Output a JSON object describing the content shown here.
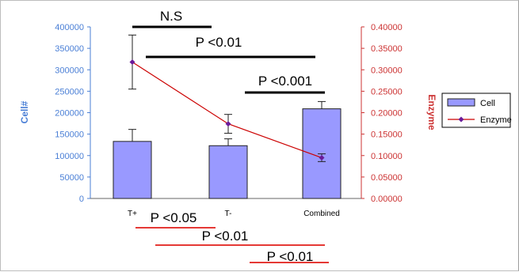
{
  "chart_data": {
    "type": "bar",
    "categories": [
      "T+",
      "T-",
      "Combined"
    ],
    "ylabel": "Cell#",
    "y2label": "Enzyme",
    "ylim": [
      0,
      400000
    ],
    "y2lim": [
      0,
      0.4
    ],
    "yticks": [
      "0",
      "50000",
      "100000",
      "150000",
      "200000",
      "250000",
      "300000",
      "350000",
      "400000"
    ],
    "y2ticks": [
      "0.00000",
      "0.05000",
      "0.10000",
      "0.15000",
      "0.20000",
      "0.25000",
      "0.30000",
      "0.35000",
      "0.40000"
    ],
    "series": [
      {
        "name": "Cell",
        "type": "bar",
        "axis": "left",
        "color": "#9999ff",
        "values": [
          133000,
          123000,
          209000
        ],
        "error": [
          28000,
          16000,
          17000
        ]
      },
      {
        "name": "Enzyme",
        "type": "line",
        "axis": "right",
        "color": "#cc0000",
        "marker_color": "#6a1b9a",
        "values": [
          0.318,
          0.174,
          0.095
        ],
        "error": [
          0.063,
          0.022,
          0.009
        ]
      }
    ],
    "legend": {
      "position": "right",
      "items": [
        "Cell",
        "Enzyme"
      ]
    },
    "annotations": {
      "above": [
        {
          "text": "N.S",
          "from": "T+",
          "to": "T-"
        },
        {
          "text": "P <0.01",
          "from": "T+",
          "to": "Combined"
        },
        {
          "text": "P <0.001",
          "from": "T-",
          "to": "Combined"
        }
      ],
      "below": [
        {
          "text": "P <0.05",
          "from": "T+",
          "to": "T-",
          "color": "#e53935"
        },
        {
          "text": "P <0.01",
          "from": "T+",
          "to": "Combined",
          "color": "#e53935"
        },
        {
          "text": "P <0.01",
          "from": "T-",
          "to": "Combined",
          "color": "#e53935"
        }
      ]
    },
    "colors": {
      "left_axis": "#4a7fd6",
      "right_axis": "#cc3333",
      "bar_fill": "#9999ff",
      "line": "#cc0000"
    }
  }
}
